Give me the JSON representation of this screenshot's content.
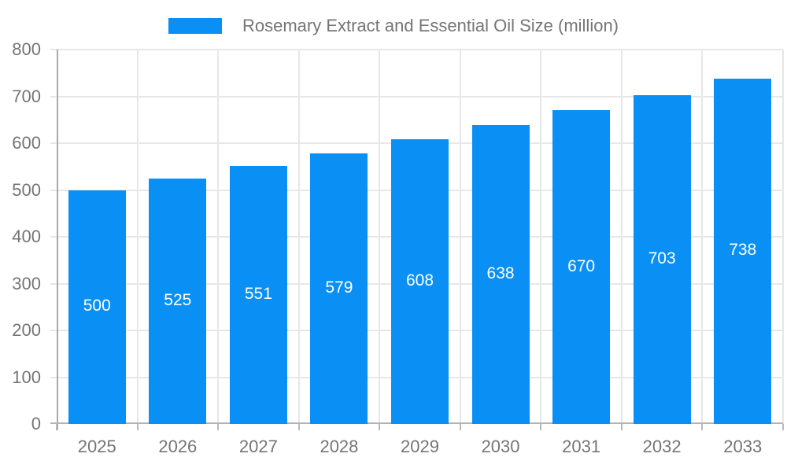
{
  "legend": {
    "label": "Rosemary Extract and Essential Oil Size (million)",
    "swatch_color": "#0a90f5"
  },
  "chart_data": {
    "type": "bar",
    "title": "Rosemary Extract and Essential Oil Size (million)",
    "categories": [
      "2025",
      "2026",
      "2027",
      "2028",
      "2029",
      "2030",
      "2031",
      "2032",
      "2033"
    ],
    "values": [
      500,
      525,
      551,
      579,
      608,
      638,
      670,
      703,
      738
    ],
    "xlabel": "",
    "ylabel": "",
    "ylim": [
      0,
      800
    ],
    "ytick_step": 100,
    "ytick_labels": [
      "0",
      "100",
      "200",
      "300",
      "400",
      "500",
      "600",
      "700",
      "800"
    ],
    "grid": true,
    "legend_position": "top-center",
    "bar_color": "#0a90f5",
    "value_label_color": "#ffffff",
    "axis_text_color": "#757575",
    "gridline_color": "#e7e7e7",
    "axis_line_color": "#a9a9a9"
  }
}
